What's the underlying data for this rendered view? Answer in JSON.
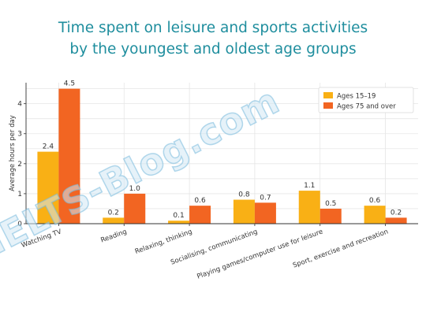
{
  "title_lines": [
    "Time spent on leisure and sports activities",
    "by the youngest and oldest age groups"
  ],
  "watermark": "IELTS-Blog.com",
  "colors": {
    "series_a": "#f9b015",
    "series_b": "#f26522",
    "title": "#1f8e9e",
    "grid": "#e6e6e6"
  },
  "chart_data": {
    "type": "bar",
    "title": "Time spent on leisure and sports activities by the youngest and oldest age groups",
    "ylabel": "Average hours per day",
    "xlabel": "",
    "ylim": [
      0,
      4.7
    ],
    "yticks": [
      "0",
      "1",
      "2",
      "3",
      "4"
    ],
    "grid": true,
    "legend_position": "top-right",
    "categories": [
      "Watching TV",
      "Reading",
      "Relaxing, thinking",
      "Socialising, communicating",
      "Playing games/computer use for leisure",
      "Sport, exercise and recreation"
    ],
    "series": [
      {
        "name": "Ages 15–19",
        "values": [
          2.4,
          0.2,
          0.1,
          0.8,
          1.1,
          0.6
        ],
        "labels": [
          "2.4",
          "0.2",
          "0.1",
          "0.8",
          "1.1",
          "0.6"
        ]
      },
      {
        "name": "Ages 75 and over",
        "values": [
          4.5,
          1.0,
          0.6,
          0.7,
          0.5,
          0.2
        ],
        "labels": [
          "4.5",
          "1.0",
          "0.6",
          "0.7",
          "0.5",
          "0.2"
        ]
      }
    ]
  }
}
